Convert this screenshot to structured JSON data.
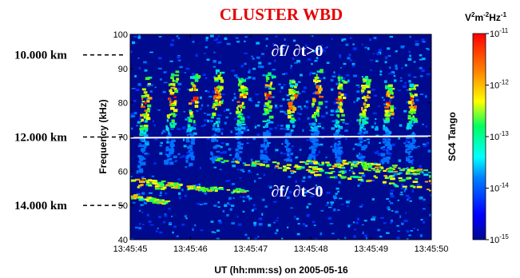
{
  "chart_data": {
    "type": "heatmap",
    "title": "CLUSTER WBD",
    "xlabel": "UT (hh:mm:ss) on 2005-05-16",
    "ylabel": "Frequency (kHz)",
    "ylim": [
      40,
      100
    ],
    "yticks": [
      "40",
      "50",
      "60",
      "70",
      "80",
      "90",
      "100"
    ],
    "xticks": [
      "13:45:45",
      "13:45:46",
      "13:45:47",
      "13:45:48",
      "13:45:49",
      "13:45:50"
    ],
    "spacecraft": "SC4 Tango",
    "colorbar": {
      "unit_base": "V",
      "unit_rest": "m",
      "unit_tail": "Hz",
      "labels": [
        {
          "base": "10",
          "exp": "-11"
        },
        {
          "base": "10",
          "exp": "-12"
        },
        {
          "base": "10",
          "exp": "-13"
        },
        {
          "base": "10",
          "exp": "-14"
        },
        {
          "base": "10",
          "exp": "-15"
        }
      ]
    },
    "annotations": {
      "upper": "∂f/ ∂t>0",
      "lower": "∂f/ ∂t<0"
    },
    "reference_line_khz": 70,
    "altitudes": [
      {
        "label": "10.000 km",
        "freq_khz": 94
      },
      {
        "label": "12.000 km",
        "freq_khz": 70
      },
      {
        "label": "14.000 km",
        "freq_khz": 50
      }
    ],
    "rising_tones": [
      {
        "t": 0.15,
        "f0": 60,
        "f1": 88
      },
      {
        "t": 0.6,
        "f0": 62,
        "f1": 90
      },
      {
        "t": 0.95,
        "f0": 62,
        "f1": 89
      },
      {
        "t": 1.35,
        "f0": 63,
        "f1": 90
      },
      {
        "t": 1.75,
        "f0": 63,
        "f1": 88
      },
      {
        "t": 2.2,
        "f0": 63,
        "f1": 89
      },
      {
        "t": 2.6,
        "f0": 63,
        "f1": 87
      },
      {
        "t": 3.0,
        "f0": 63,
        "f1": 90
      },
      {
        "t": 3.4,
        "f0": 63,
        "f1": 88
      },
      {
        "t": 3.8,
        "f0": 63,
        "f1": 88
      },
      {
        "t": 4.2,
        "f0": 63,
        "f1": 86
      },
      {
        "t": 4.6,
        "f0": 63,
        "f1": 86
      }
    ],
    "falling_tones": [
      {
        "t0": 0.0,
        "t1": 1.2,
        "f0": 58,
        "f1": 55
      },
      {
        "t0": 0.1,
        "t1": 1.9,
        "f0": 56,
        "f1": 54.5
      },
      {
        "t0": 0.0,
        "t1": 0.6,
        "f0": 53,
        "f1": 51
      },
      {
        "t0": 1.3,
        "t1": 5.0,
        "f0": 64,
        "f1": 55
      },
      {
        "t0": 2.0,
        "t1": 5.0,
        "f0": 63,
        "f1": 57
      },
      {
        "t0": 2.8,
        "t1": 5.0,
        "f0": 63,
        "f1": 59
      },
      {
        "t0": 3.5,
        "t1": 5.0,
        "f0": 63,
        "f1": 60
      }
    ]
  }
}
